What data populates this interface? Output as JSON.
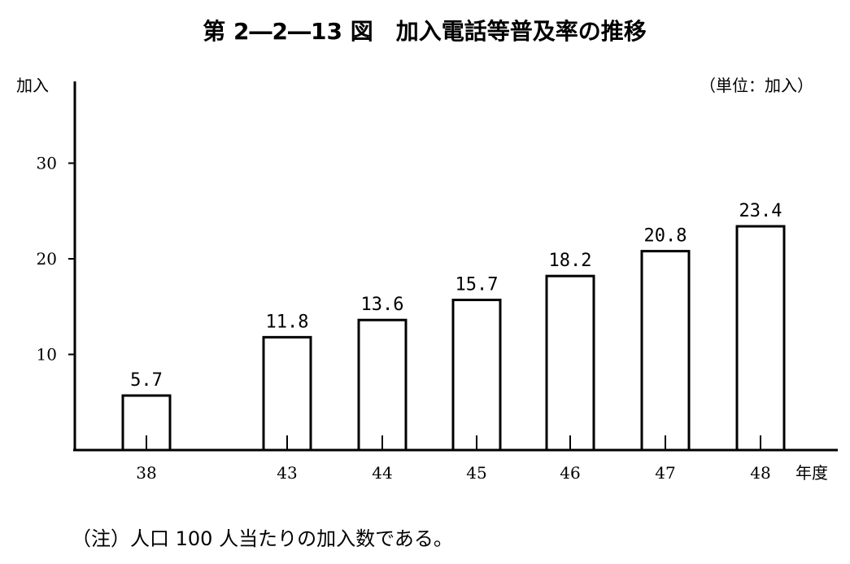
{
  "chart_data": {
    "type": "bar",
    "title": "第 2―2―13 図　加入電話等普及率の推移",
    "unit_note": "（単位：加入）",
    "ylabel": "加入",
    "xlabel": "年度",
    "categories": [
      "38",
      "43",
      "44",
      "45",
      "46",
      "47",
      "48"
    ],
    "values": [
      5.7,
      11.8,
      13.6,
      15.7,
      18.2,
      20.8,
      23.4
    ],
    "value_labels": [
      "5.7",
      "11.8",
      "13.6",
      "15.7",
      "18.2",
      "20.8",
      "23.4"
    ],
    "yticks": [
      10,
      20,
      30
    ],
    "ylim": [
      0,
      38
    ],
    "footnote": "（注）人口 100 人当たりの加入数である。",
    "grid": false,
    "legend": "none",
    "colors": {
      "bar_fill": "#ffffff",
      "bar_stroke": "#000000"
    }
  }
}
